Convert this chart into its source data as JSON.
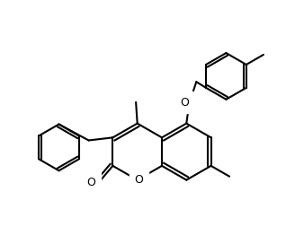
{
  "background_color": "#ffffff",
  "line_color": "#000000",
  "line_width": 1.5,
  "bond_color": "#000000",
  "figsize": [
    3.18,
    2.72
  ],
  "dpi": 100,
  "xlim": [
    0,
    10
  ],
  "ylim": [
    0,
    8.5
  ]
}
